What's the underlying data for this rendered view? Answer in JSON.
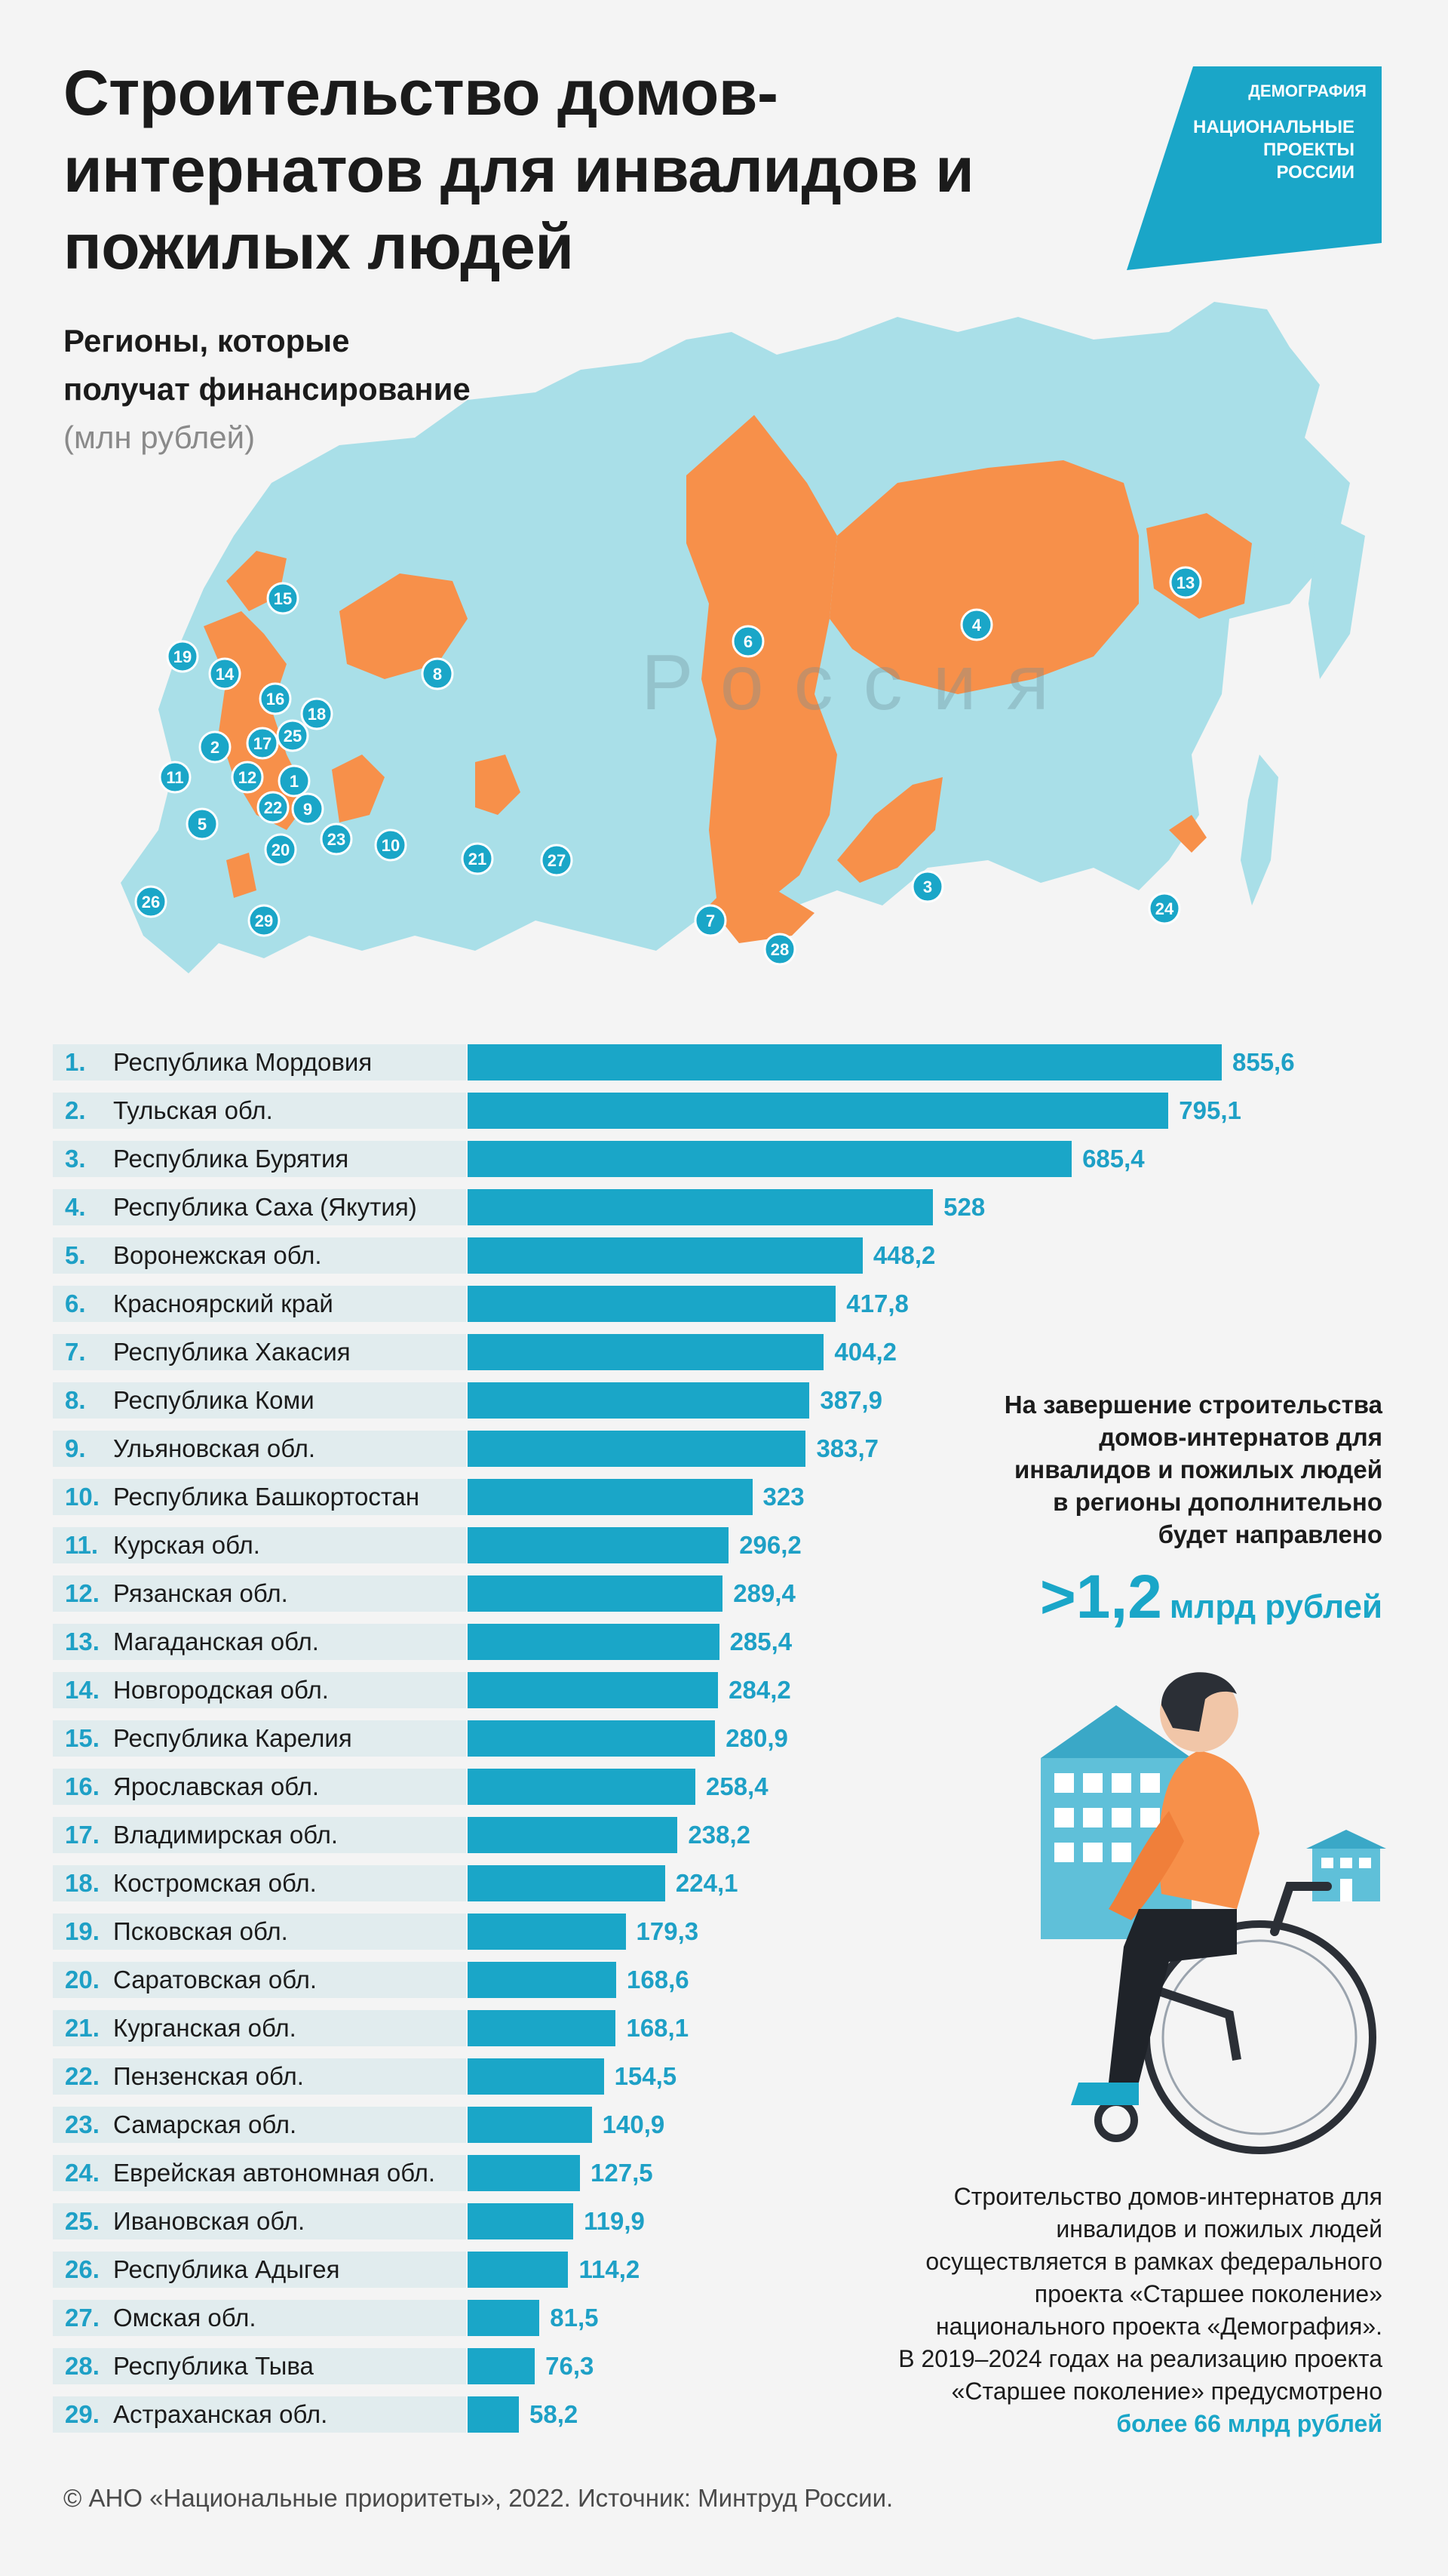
{
  "header": {
    "title": "Строительство домов-интернатов для инвалидов и пожилых людей",
    "subtitle_line1": "Регионы, которые",
    "subtitle_line2": "получат финансирование",
    "unit": "(млн рублей)"
  },
  "logo": {
    "tag": "ДЕМОГРАФИЯ",
    "line1": "НАЦИОНАЛЬНЫЕ",
    "line2": "ПРОЕКТЫ",
    "line3": "РОССИИ"
  },
  "map": {
    "watermark": "Россия",
    "markers": [
      "1",
      "2",
      "3",
      "4",
      "5",
      "6",
      "7",
      "8",
      "9",
      "10",
      "11",
      "12",
      "13",
      "14",
      "15",
      "16",
      "17",
      "18",
      "19",
      "20",
      "21",
      "22",
      "23",
      "24",
      "25",
      "26",
      "27",
      "28",
      "29"
    ]
  },
  "colors": {
    "accent": "#1aa6c8",
    "map_highlight": "#f7904a",
    "map_base": "#a9dfe8",
    "label_bg": "#e1ecee"
  },
  "chart_data": {
    "type": "bar",
    "orientation": "horizontal",
    "unit": "млн рублей",
    "categories": [
      "Республика Мордовия",
      "Тульская обл.",
      "Республика Бурятия",
      "Республика Саха (Якутия)",
      "Воронежская обл.",
      "Красноярский край",
      "Республика Хакасия",
      "Республика Коми",
      "Ульяновская обл.",
      "Республика Башкортостан",
      "Курская обл.",
      "Рязанская обл.",
      "Магаданская обл.",
      "Новгородская обл.",
      "Республика Карелия",
      "Ярославская обл.",
      "Владимирская обл.",
      "Костромская обл.",
      "Псковская обл.",
      "Саратовская обл.",
      "Курганская обл.",
      "Пензенская обл.",
      "Самарская обл.",
      "Еврейская автономная обл.",
      "Ивановская обл.",
      "Республика Адыгея",
      "Омская обл.",
      "Республика Тыва",
      "Астраханская обл."
    ],
    "ranks": [
      "1.",
      "2.",
      "3.",
      "4.",
      "5.",
      "6.",
      "7.",
      "8.",
      "9.",
      "10.",
      "11.",
      "12.",
      "13.",
      "14.",
      "15.",
      "16.",
      "17.",
      "18.",
      "19.",
      "20.",
      "21.",
      "22.",
      "23.",
      "24.",
      "25.",
      "26.",
      "27.",
      "28.",
      "29."
    ],
    "values": [
      855.6,
      795.1,
      685.4,
      528,
      448.2,
      417.8,
      404.2,
      387.9,
      383.7,
      323,
      296.2,
      289.4,
      285.4,
      284.2,
      280.9,
      258.4,
      238.2,
      224.1,
      179.3,
      168.6,
      168.1,
      154.5,
      140.9,
      127.5,
      119.9,
      114.2,
      81.5,
      76.3,
      58.2
    ],
    "value_labels": [
      "855,6",
      "795,1",
      "685,4",
      "528",
      "448,2",
      "417,8",
      "404,2",
      "387,9",
      "383,7",
      "323",
      "296,2",
      "289,4",
      "285,4",
      "284,2",
      "280,9",
      "258,4",
      "238,2",
      "224,1",
      "179,3",
      "168,6",
      "168,1",
      "154,5",
      "140,9",
      "127,5",
      "119,9",
      "114,2",
      "81,5",
      "76,3",
      "58,2"
    ],
    "xlim": [
      0,
      855.6
    ]
  },
  "side": {
    "line1": "На завершение строительства",
    "line2": "домов-интернатов для",
    "line3": "инвалидов и пожилых людей",
    "line4": "в регионы дополнительно",
    "line5": "будет направлено",
    "big_number": ">1,2",
    "big_unit": "млрд рублей"
  },
  "note": {
    "line1": "Строительство домов-интернатов для",
    "line2": "инвалидов и пожилых людей",
    "line3": "осуществляется в рамках федерального",
    "line4": "проекта «Старшее поколение»",
    "line5": "национального проекта «Демография».",
    "line6": "В 2019–2024 годах на реализацию проекта",
    "line7": "«Старшее поколение» предусмотрено",
    "highlight": "более 66 млрд рублей"
  },
  "footer": "© АНО «Национальные приоритеты», 2022. Источник: Минтруд России."
}
